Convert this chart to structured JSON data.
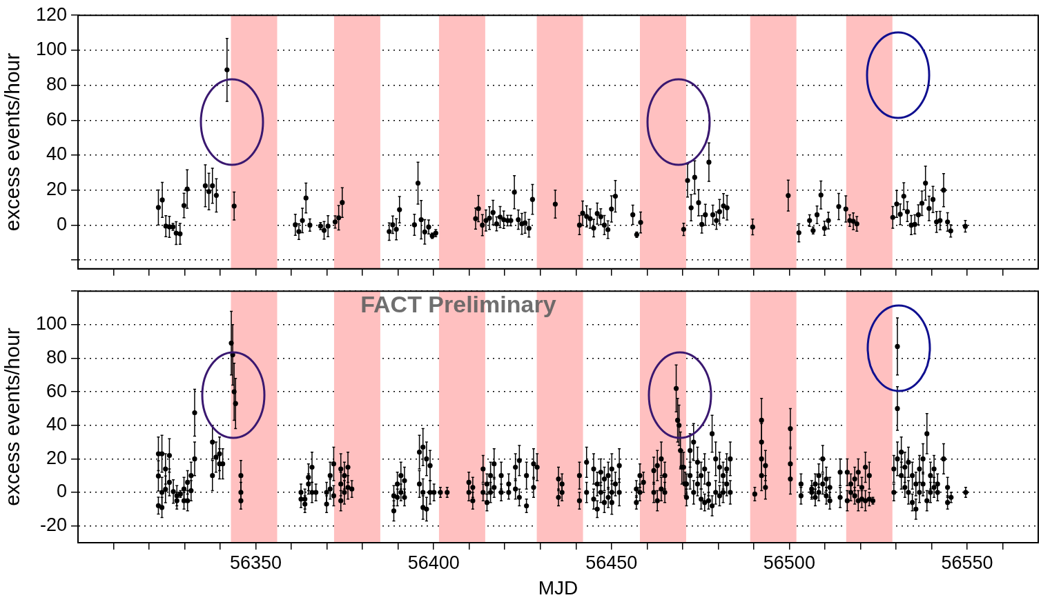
{
  "chart_data": [
    {
      "type": "scatter",
      "ylabel": "excess events/hour",
      "xlim": [
        56300,
        56570
      ],
      "xticks": [
        {
          "value": 56310,
          "label": null
        },
        {
          "value": 56320,
          "label": null
        },
        {
          "value": 56330,
          "label": null
        },
        {
          "value": 56340,
          "label": null
        },
        56350,
        {
          "value": 56360,
          "label": null
        },
        {
          "value": 56370,
          "label": null
        },
        {
          "value": 56380,
          "label": null
        },
        {
          "value": 56390,
          "label": null
        },
        56400,
        {
          "value": 56410,
          "label": null
        },
        {
          "value": 56420,
          "label": null
        },
        {
          "value": 56430,
          "label": null
        },
        {
          "value": 56440,
          "label": null
        },
        56450,
        {
          "value": 56460,
          "label": null
        },
        {
          "value": 56470,
          "label": null
        },
        {
          "value": 56480,
          "label": null
        },
        {
          "value": 56490,
          "label": null
        },
        56500,
        {
          "value": 56510,
          "label": null
        },
        {
          "value": 56520,
          "label": null
        },
        {
          "value": 56530,
          "label": null
        },
        {
          "value": 56540,
          "label": null
        },
        56550,
        {
          "value": 56560,
          "label": null
        }
      ],
      "ylim": [
        -25,
        120
      ],
      "yticks": [
        {
          "value": -20,
          "label": null
        },
        0,
        20,
        40,
        60,
        80,
        100,
        120
      ],
      "tick_labels": "y",
      "grid": "y",
      "legend": false,
      "marker": "circle",
      "bands": [
        {
          "axis": "x",
          "from": 56343,
          "to": 56356,
          "color": "#ffc0c0"
        },
        {
          "axis": "x",
          "from": 56372,
          "to": 56385,
          "color": "#ffc0c0"
        },
        {
          "axis": "x",
          "from": 56401.5,
          "to": 56414.5,
          "color": "#ffc0c0"
        },
        {
          "axis": "x",
          "from": 56429,
          "to": 56442,
          "color": "#ffc0c0"
        },
        {
          "axis": "x",
          "from": 56458,
          "to": 56471,
          "color": "#ffc0c0"
        },
        {
          "axis": "x",
          "from": 56489,
          "to": 56502,
          "color": "#ffc0c0"
        },
        {
          "axis": "x",
          "from": 56516,
          "to": 56529,
          "color": "#ffc0c0"
        }
      ],
      "series": [
        {
          "color": "#000000",
          "x": [
            56322.6,
            56323.7,
            56324.7,
            56325.7,
            56326.7,
            56327.6,
            56328.7,
            56329.8,
            56330.7,
            56335.8,
            56336.8,
            56337.8,
            56338.9,
            56341.9,
            56343.9,
            56361.1,
            56362.1,
            56363.1,
            56364.1,
            56365.2,
            56368.2,
            56369.2,
            56370.3,
            56372.3,
            56373.3,
            56374.3,
            56387.5,
            56388.5,
            56389.5,
            56390.4,
            56394.6,
            56395.6,
            56396.5,
            56397.5,
            56398.6,
            56399.6,
            56400.6,
            56411.8,
            56412.6,
            56413.7,
            56414.7,
            56415.7,
            56416.7,
            56417.7,
            56418.7,
            56419.7,
            56420.8,
            56421.7,
            56422.7,
            56423.8,
            56424.8,
            56425.7,
            56426.8,
            56427.8,
            56434.2,
            56441,
            56441.9,
            56443,
            56444,
            56445,
            56446,
            56447,
            56448,
            56449,
            56450,
            56451.1,
            56456,
            56457.1,
            56458.2,
            56470.3,
            56471.4,
            56472.4,
            56473.4,
            56474.5,
            56475.4,
            56476.4,
            56477.4,
            56478.5,
            56479.5,
            56480.4,
            56481.5,
            56482.5,
            56489.7,
            56499.7,
            56502.7,
            56505.7,
            56506.7,
            56507.8,
            56508.9,
            56509.9,
            56511,
            56513.9,
            56515.9,
            56517,
            56518,
            56519,
            56529.1,
            56530.2,
            56531.2,
            56532.2,
            56533.2,
            56534.3,
            56535.3,
            56536.3,
            56537.3,
            56538.3,
            56539.3,
            56540.4,
            56541.4,
            56542.4,
            56543.4,
            56544.5,
            56545.4,
            56549.5
          ],
          "values": [
            10.1,
            14.4,
            -0.6,
            -1,
            -1,
            -4.6,
            -5,
            11.2,
            20.6,
            22.5,
            19.2,
            22.5,
            17,
            88.8,
            10.9,
            0.2,
            -3.7,
            2.6,
            15.5,
            0,
            -0.6,
            -3,
            -0.6,
            1.8,
            4.2,
            12.9,
            -3.7,
            0.2,
            -2.4,
            8.8,
            0.2,
            24,
            3.1,
            -3.9,
            -1.1,
            -6.1,
            -4.6,
            3.7,
            9.4,
            0,
            2.6,
            4,
            7.2,
            0.7,
            4.6,
            3.1,
            2.6,
            2.6,
            18.8,
            3.1,
            0.7,
            1.3,
            -1.8,
            14.7,
            12,
            0,
            6.8,
            5,
            3.7,
            -1.7,
            6.6,
            4.8,
            0,
            -2.6,
            9.2,
            16.5,
            5.9,
            -5.5,
            1.5,
            -2.4,
            25.5,
            9.9,
            27.3,
            12.8,
            0.4,
            5.9,
            36,
            5.9,
            2.6,
            7.7,
            11,
            9.9,
            -1.1,
            16.9,
            -4.4,
            2.6,
            -3.1,
            5.9,
            17.2,
            -1.8,
            2.6,
            10.6,
            9.2,
            2.6,
            2.2,
            0.7,
            4.4,
            12.1,
            6.2,
            16.5,
            7.7,
            0,
            0.4,
            5.9,
            12.5,
            24,
            9.5,
            14.7,
            1.8,
            2.6,
            20,
            1.8,
            -3.3,
            -0.7
          ],
          "errors": [
            10,
            10,
            6,
            6,
            2,
            6.5,
            6,
            7,
            11,
            12,
            10.5,
            10,
            9.5,
            18,
            8,
            6,
            4.5,
            7,
            8.5,
            3.5,
            2,
            5,
            6,
            3.5,
            7,
            8.5,
            5,
            5,
            6,
            7.5,
            6,
            12,
            11,
            7,
            4,
            1.5,
            2,
            6,
            7.5,
            6,
            6,
            6.5,
            7,
            4,
            6,
            5,
            3,
            3,
            9.5,
            5.5,
            6,
            6,
            5,
            8.5,
            8,
            5.5,
            7,
            6,
            5.5,
            5,
            6,
            4.5,
            5.5,
            5,
            7.5,
            9,
            5.5,
            1.5,
            6,
            3.5,
            9.5,
            7.5,
            9.5,
            7.5,
            5,
            6,
            11,
            5.5,
            5,
            7,
            7,
            7,
            4.5,
            8.8,
            5.2,
            3.3,
            2,
            5,
            8,
            4,
            4.8,
            7.5,
            7.5,
            3.3,
            4.8,
            4.2,
            6.2,
            7.7,
            5.9,
            7.7,
            5.7,
            5.5,
            5.5,
            5.7,
            7,
            9.7,
            7,
            7.5,
            6,
            5.3,
            9.5,
            5.3,
            3.5,
            3.3
          ]
        }
      ]
    },
    {
      "type": "scatter",
      "xlabel": "MJD",
      "ylabel": "excess events/hour",
      "annotations": [
        "FACT Preliminary"
      ],
      "xlim": [
        56300,
        56570
      ],
      "xticks": [
        {
          "value": 56310,
          "label": null
        },
        {
          "value": 56320,
          "label": null
        },
        {
          "value": 56330,
          "label": null
        },
        {
          "value": 56340,
          "label": null
        },
        56350,
        {
          "value": 56360,
          "label": null
        },
        {
          "value": 56370,
          "label": null
        },
        {
          "value": 56380,
          "label": null
        },
        {
          "value": 56390,
          "label": null
        },
        56400,
        {
          "value": 56410,
          "label": null
        },
        {
          "value": 56420,
          "label": null
        },
        {
          "value": 56430,
          "label": null
        },
        {
          "value": 56440,
          "label": null
        },
        56450,
        {
          "value": 56460,
          "label": null
        },
        {
          "value": 56470,
          "label": null
        },
        {
          "value": 56480,
          "label": null
        },
        {
          "value": 56490,
          "label": null
        },
        56500,
        {
          "value": 56510,
          "label": null
        },
        {
          "value": 56520,
          "label": null
        },
        {
          "value": 56530,
          "label": null
        },
        {
          "value": 56540,
          "label": null
        },
        56550,
        {
          "value": 56560,
          "label": null
        }
      ],
      "ylim": [
        -30,
        120
      ],
      "yticks": [
        -20,
        0,
        20,
        40,
        60,
        80,
        100,
        {
          "value": 120,
          "label": null
        }
      ],
      "grid": "y",
      "legend": false,
      "marker": "circle",
      "bands": [
        {
          "axis": "x",
          "from": 56343,
          "to": 56356,
          "color": "#ffc0c0"
        },
        {
          "axis": "x",
          "from": 56372,
          "to": 56385,
          "color": "#ffc0c0"
        },
        {
          "axis": "x",
          "from": 56401.5,
          "to": 56414.5,
          "color": "#ffc0c0"
        },
        {
          "axis": "x",
          "from": 56429,
          "to": 56442,
          "color": "#ffc0c0"
        },
        {
          "axis": "x",
          "from": 56458,
          "to": 56471,
          "color": "#ffc0c0"
        },
        {
          "axis": "x",
          "from": 56489,
          "to": 56502,
          "color": "#ffc0c0"
        },
        {
          "axis": "x",
          "from": 56516,
          "to": 56529,
          "color": "#ffc0c0"
        }
      ],
      "series": [
        {
          "color": "#000000",
          "x": [
            56322.6,
            56322.6,
            56322.6,
            56323.6,
            56323.6,
            56323.6,
            56324.6,
            56324.6,
            56325.7,
            56325.7,
            56326.8,
            56327.8,
            56327.8,
            56328.8,
            56329.8,
            56329.8,
            56330.8,
            56330.8,
            56331.8,
            56331.8,
            56332.8,
            56332.8,
            56337.8,
            56337.8,
            56338.8,
            56339.8,
            56339.8,
            56340.7,
            56343.1,
            56343.5,
            56343.9,
            56344.3,
            56345.8,
            56345.8,
            56345.8,
            56362.7,
            56362.7,
            56363.8,
            56363.8,
            56364.8,
            56364.8,
            56365.8,
            56365.8,
            56366.9,
            56369.9,
            56369.9,
            56370.9,
            56370.9,
            56371.9,
            56371.9,
            56373.9,
            56373.9,
            56373.9,
            56374.9,
            56374.9,
            56375.9,
            56375.9,
            56377,
            56388.8,
            56388.8,
            56389.8,
            56389.8,
            56390.8,
            56390.8,
            56391.8,
            56391.8,
            56396,
            56396,
            56397,
            56397,
            56397,
            56398,
            56398,
            56399,
            56399,
            56400.1,
            56401.9,
            56403.8,
            56409.9,
            56409.9,
            56411,
            56411,
            56413.9,
            56413.9,
            56415,
            56415,
            56416,
            56416,
            56417,
            56417,
            56419,
            56419,
            56421.1,
            56421.1,
            56423,
            56423,
            56424.1,
            56424.1,
            56426.1,
            56426.1,
            56428.1,
            56428.1,
            56429.1,
            56435.1,
            56435.1,
            56436.1,
            56436.1,
            56441,
            56441,
            56443,
            56443,
            56445,
            56445,
            56446,
            56446,
            56447,
            56447,
            56448,
            56448,
            56449.1,
            56449.1,
            56450.1,
            56450.1,
            56450.1,
            56451.1,
            56452.2,
            56452.2,
            56457,
            56457,
            56458,
            56458,
            56459,
            56461.9,
            56461.9,
            56462.9,
            56462.9,
            56464,
            56464,
            56465,
            56465,
            56468.2,
            56468.6,
            56469,
            56469.4,
            56469.8,
            56470.3,
            56470.7,
            56471.1,
            56471.1,
            56472.1,
            56472.1,
            56473.1,
            56473.1,
            56474.2,
            56474.2,
            56475.2,
            56475.2,
            56476.2,
            56476.2,
            56477.3,
            56477.3,
            56478.3,
            56478.3,
            56479.3,
            56479.3,
            56480.4,
            56480.4,
            56481.4,
            56481.4,
            56482.4,
            56482.4,
            56483.4,
            56483.4,
            56490.3,
            56492.2,
            56492.2,
            56492.2,
            56492.2,
            56493.3,
            56493.3,
            56500.3,
            56500.3,
            56500.3,
            56503.3,
            56503.3,
            56506.3,
            56506.3,
            56507.3,
            56507.3,
            56508.3,
            56508.3,
            56509.4,
            56509.4,
            56510.4,
            56510.4,
            56511.4,
            56511.4,
            56514.3,
            56514.3,
            56516.3,
            56516.3,
            56517.3,
            56517.3,
            56518.4,
            56518.4,
            56519.4,
            56519.4,
            56520.4,
            56520.4,
            56521.4,
            56521.4,
            56522.5,
            56522.5,
            56523.5,
            56529.4,
            56529.4,
            56530.4,
            56530.4,
            56530.4,
            56531.5,
            56531.5,
            56532.5,
            56532.5,
            56533.5,
            56533.5,
            56534.6,
            56534.6,
            56535.6,
            56535.6,
            56536.6,
            56536.6,
            56537.6,
            56537.6,
            56538.7,
            56538.7,
            56539.7,
            56539.7,
            56540.7,
            56540.7,
            56541.7,
            56541.7,
            56543.4,
            56544.5,
            56544.5,
            56545.5,
            56549.6
          ],
          "values": [
            23,
            9.8,
            -7.9,
            23,
            0,
            -9,
            14,
            1.8,
            22,
            6,
            0.5,
            -2,
            -5,
            -1,
            2,
            -5,
            -5,
            6,
            10,
            1,
            47.5,
            20,
            30,
            10,
            21,
            17,
            23,
            17,
            89,
            82,
            60,
            53,
            10,
            -5,
            0,
            0,
            -4,
            -7,
            -4,
            9,
            5,
            15,
            0,
            0,
            0,
            -7,
            10,
            2,
            17,
            -2,
            14,
            5,
            -5,
            10,
            0,
            15,
            3,
            2,
            -2,
            -11,
            5,
            -3,
            10,
            0,
            7,
            -3,
            24,
            5,
            27,
            0,
            -9,
            20,
            -10,
            16,
            0,
            0,
            0,
            0,
            6,
            0,
            3,
            -5,
            14,
            0,
            -6,
            5,
            10,
            0,
            17,
            3,
            10,
            0,
            0,
            5,
            15,
            2,
            19,
            -3,
            10,
            -8,
            17,
            3,
            15,
            8,
            -3,
            5,
            0,
            10,
            -5,
            18,
            0,
            14,
            -4,
            5,
            -10,
            12,
            0,
            8,
            -6,
            10,
            -3,
            14,
            0,
            -6,
            5,
            16,
            0,
            2,
            -6,
            10,
            0,
            6,
            13,
            0,
            16,
            -5,
            20,
            2,
            10,
            0,
            62,
            43,
            40,
            25,
            15,
            15,
            5,
            5,
            -3,
            25,
            10,
            30,
            0,
            18,
            5,
            10,
            -4,
            14,
            -6,
            5,
            -5,
            35,
            -8,
            20,
            0,
            15,
            -2,
            10,
            0,
            14,
            5,
            20,
            0,
            -1,
            43,
            30,
            20,
            10,
            16,
            3,
            38,
            17,
            8,
            5,
            -2,
            2,
            0,
            5,
            -3,
            10,
            0,
            20,
            5,
            8,
            -2,
            3,
            -5,
            12,
            -3,
            12,
            -5,
            5,
            0,
            8,
            -2,
            12,
            -5,
            3,
            -4,
            15,
            -5,
            10,
            -4,
            -5,
            14,
            0,
            87,
            50,
            20,
            10,
            24,
            15,
            3,
            18,
            0,
            10,
            -6,
            5,
            -10,
            14,
            0,
            20,
            5,
            35,
            -5,
            10,
            0,
            14,
            3,
            5,
            0,
            20,
            3,
            -6,
            -3,
            0
          ],
          "errors": [
            10,
            9,
            5,
            11,
            9,
            6,
            9,
            8,
            10,
            8,
            7,
            6,
            5,
            2,
            7,
            5,
            6,
            7,
            8,
            6,
            14,
            10,
            10,
            9,
            9,
            9,
            10,
            9,
            19,
            18,
            17,
            15,
            9,
            5,
            6,
            5,
            5,
            5,
            6,
            8,
            6,
            9,
            6,
            5,
            6,
            5,
            8,
            6,
            10,
            6,
            9,
            7,
            6,
            8,
            7,
            9,
            7,
            5,
            6,
            6,
            7,
            5,
            8,
            5,
            8,
            5,
            10,
            8,
            11,
            8,
            7,
            10,
            7,
            9,
            7,
            5,
            3,
            3,
            6,
            5,
            6,
            5,
            8,
            5,
            5,
            6,
            8,
            6,
            9,
            6,
            8,
            5,
            4,
            6,
            8,
            6,
            9,
            5,
            8,
            4,
            9,
            6,
            8,
            7,
            5,
            6,
            5,
            8,
            5,
            9,
            6,
            9,
            6,
            7,
            5,
            8,
            6,
            7,
            6,
            8,
            6,
            9,
            7,
            7,
            7,
            10,
            8,
            5,
            4,
            7,
            5,
            6,
            8,
            6,
            9,
            6,
            10,
            7,
            8,
            6,
            14,
            13,
            12,
            11,
            10,
            9,
            7,
            6,
            5,
            10,
            8,
            11,
            7,
            9,
            7,
            8,
            6,
            9,
            5,
            7,
            5,
            11,
            6,
            10,
            7,
            9,
            6,
            8,
            6,
            9,
            7,
            10,
            7,
            4,
            13,
            11,
            10,
            9,
            9,
            7,
            12,
            10,
            9,
            6,
            5,
            5,
            4,
            6,
            5,
            7,
            5,
            8,
            6,
            7,
            5,
            6,
            5,
            8,
            6,
            8,
            6,
            6,
            5,
            7,
            5,
            8,
            6,
            6,
            5,
            9,
            6,
            8,
            4,
            2,
            8,
            5,
            17,
            13,
            10,
            8,
            9,
            9,
            6,
            9,
            7,
            8,
            5,
            7,
            6,
            8,
            6,
            9,
            7,
            12,
            6,
            8,
            6,
            8,
            6,
            6,
            5,
            9,
            6,
            4,
            3,
            3
          ]
        }
      ]
    }
  ]
}
